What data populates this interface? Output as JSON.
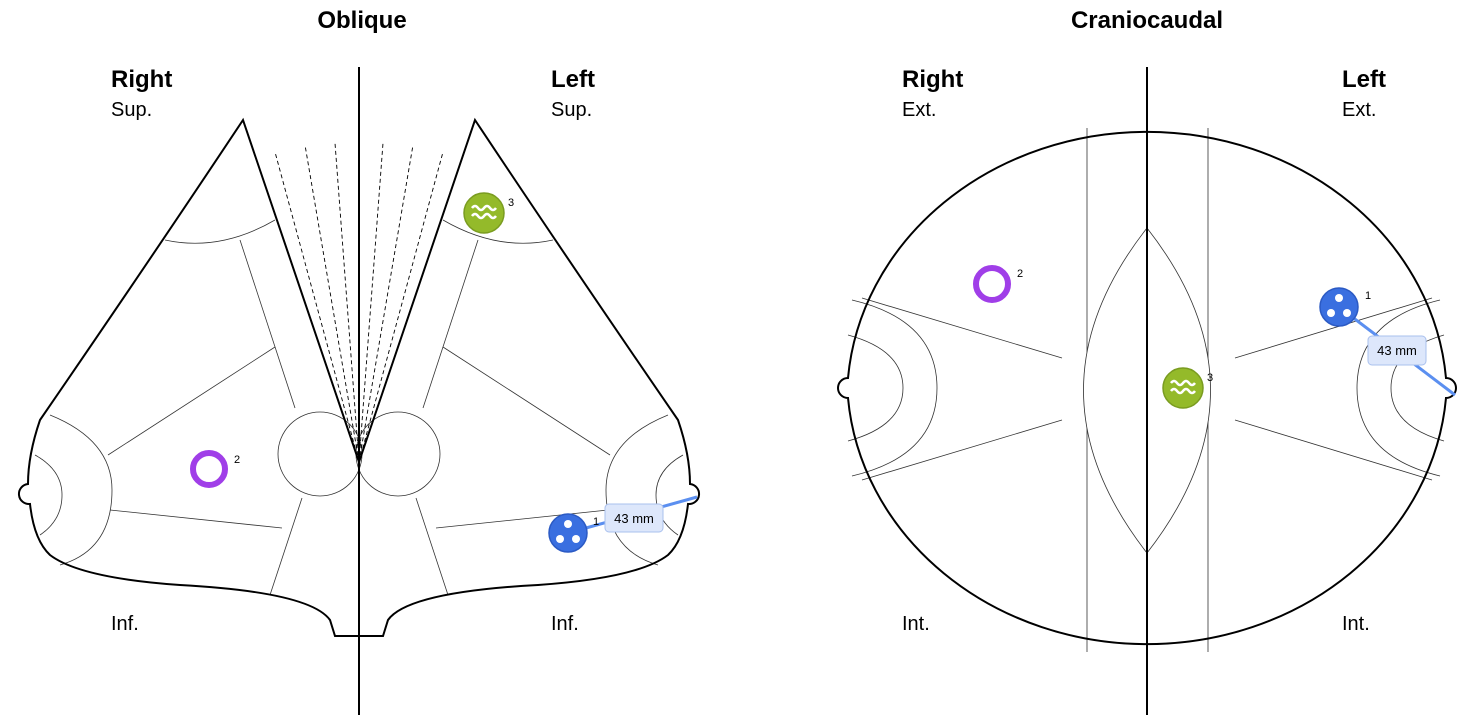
{
  "views": [
    {
      "title": "Oblique",
      "right": {
        "label": "Right",
        "top": "Sup.",
        "bottom": "Inf."
      },
      "left": {
        "label": "Left",
        "top": "Sup.",
        "bottom": "Inf."
      },
      "markers": [
        {
          "number": 1,
          "measurement": "43 mm"
        },
        {
          "number": 2
        },
        {
          "number": 3
        }
      ]
    },
    {
      "title": "Craniocaudal",
      "right": {
        "label": "Right",
        "top": "Ext.",
        "bottom": "Int."
      },
      "left": {
        "label": "Left",
        "top": "Ext.",
        "bottom": "Int."
      },
      "markers": [
        {
          "number": 1,
          "measurement": "43 mm"
        },
        {
          "number": 2
        },
        {
          "number": 3
        }
      ]
    }
  ]
}
